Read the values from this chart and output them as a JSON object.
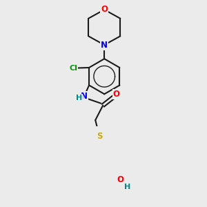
{
  "background_color": "#ebebeb",
  "bond_color": "#1a1a1a",
  "atom_colors": {
    "O": "#ff0000",
    "N": "#0000dd",
    "Cl": "#009900",
    "S": "#ccaa00",
    "H": "#008888",
    "C": "#1a1a1a"
  },
  "figsize": [
    3.0,
    3.0
  ],
  "dpi": 100
}
